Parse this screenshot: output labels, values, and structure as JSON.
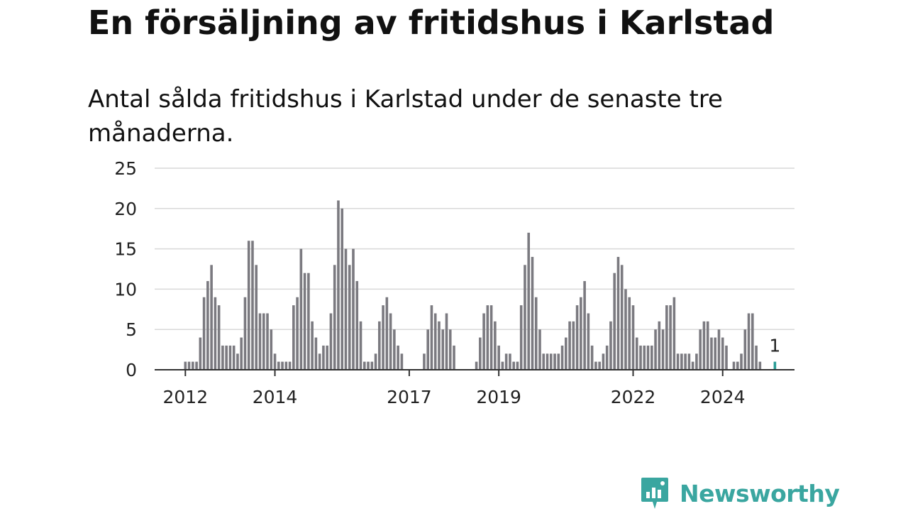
{
  "title": "En försäljning av fritidshus i Karlstad",
  "subtitle": "Antal sålda fritidshus i Karlstad under de senaste tre månaderna.",
  "logo": {
    "text": "Newsworthy",
    "color": "#3aa6a0"
  },
  "chart_data": {
    "type": "bar",
    "title": "",
    "xlabel": "",
    "ylabel": "",
    "ylim": [
      0,
      25
    ],
    "yticks": [
      "0",
      "5",
      "10",
      "15",
      "20",
      "25"
    ],
    "xticks": [
      "2012",
      "2014",
      "2017",
      "2019",
      "2022",
      "2024"
    ],
    "grid": true,
    "bar_color": "#7b7a80",
    "highlight_color": "#2a9d96",
    "last_value_label": "1",
    "values": [
      1,
      1,
      1,
      1,
      4,
      9,
      11,
      13,
      9,
      8,
      3,
      3,
      3,
      3,
      2,
      4,
      9,
      16,
      16,
      13,
      7,
      7,
      7,
      5,
      2,
      1,
      1,
      1,
      1,
      8,
      9,
      15,
      12,
      12,
      6,
      4,
      2,
      3,
      3,
      7,
      13,
      21,
      20,
      15,
      13,
      15,
      11,
      6,
      1,
      1,
      1,
      2,
      6,
      8,
      9,
      7,
      5,
      3,
      2,
      0,
      0,
      0,
      0,
      0,
      2,
      5,
      8,
      7,
      6,
      5,
      7,
      5,
      3,
      0,
      0,
      0,
      0,
      0,
      1,
      4,
      7,
      8,
      8,
      6,
      3,
      1,
      2,
      2,
      1,
      1,
      8,
      13,
      17,
      14,
      9,
      5,
      2,
      2,
      2,
      2,
      2,
      3,
      4,
      6,
      6,
      8,
      9,
      11,
      7,
      3,
      1,
      1,
      2,
      3,
      6,
      12,
      14,
      13,
      10,
      9,
      8,
      4,
      3,
      3,
      3,
      3,
      5,
      6,
      5,
      8,
      8,
      9,
      2,
      2,
      2,
      2,
      1,
      2,
      5,
      6,
      6,
      4,
      4,
      5,
      4,
      3,
      0,
      1,
      1,
      2,
      5,
      7,
      7,
      3,
      1,
      0,
      0,
      0,
      1
    ]
  }
}
